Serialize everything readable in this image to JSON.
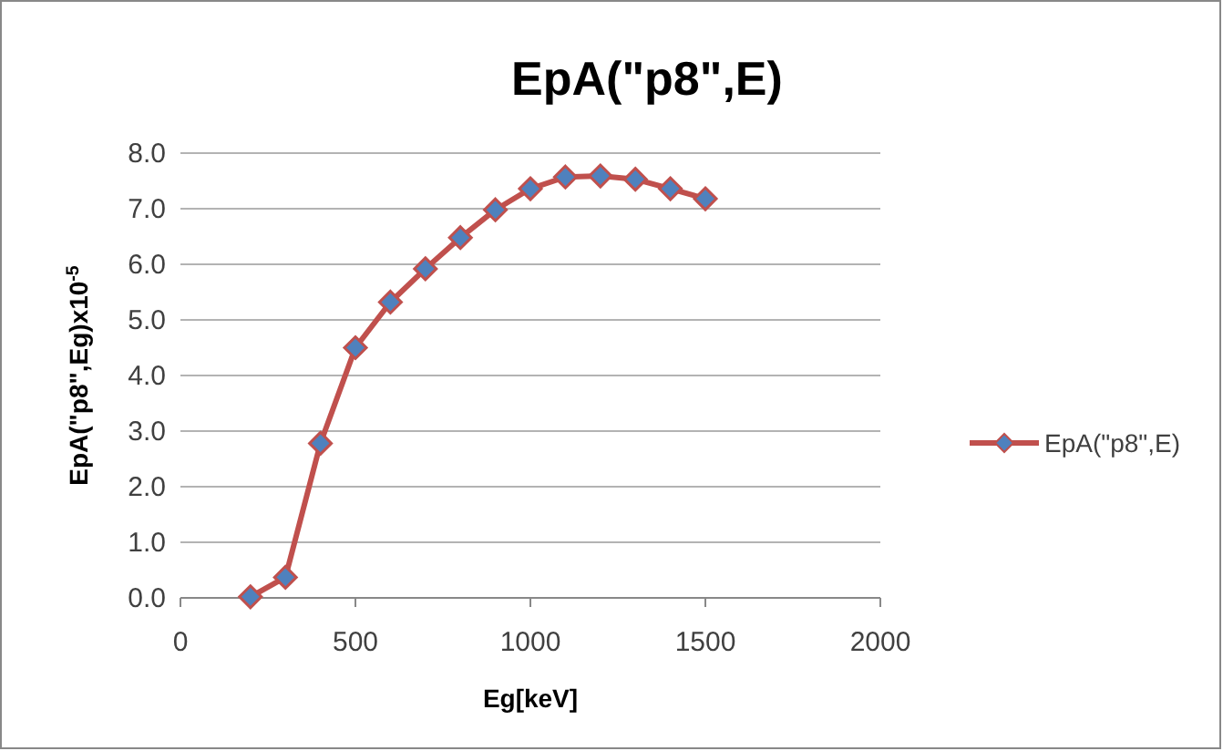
{
  "chart_data": {
    "type": "line",
    "title": "EpA(\"p8\",E)",
    "xlabel": "Eg[keV]",
    "ylabel": "EpA(\"p8\",Eg)x10$^{-5}$",
    "x": [
      200,
      300,
      400,
      500,
      600,
      700,
      800,
      900,
      1000,
      1100,
      1200,
      1300,
      1400,
      1500
    ],
    "series": [
      {
        "name": "EpA(\"p8\",E)",
        "color": "#c0504d",
        "values": [
          0.02,
          0.37,
          2.78,
          4.5,
          5.32,
          5.92,
          6.48,
          6.98,
          7.36,
          7.57,
          7.59,
          7.53,
          7.36,
          7.18
        ]
      }
    ],
    "xlim": [
      0,
      2000
    ],
    "xticks": [
      0,
      500,
      1000,
      1500,
      2000
    ],
    "ylim": [
      0,
      8
    ],
    "yticks": [
      {
        "value": 0,
        "label": "0.0"
      },
      {
        "value": 1,
        "label": "1.0"
      },
      {
        "value": 2,
        "label": "2.0"
      },
      {
        "value": 3,
        "label": "3.0"
      },
      {
        "value": 4,
        "label": "4.0"
      },
      {
        "value": 5,
        "label": "5.0"
      },
      {
        "value": 6,
        "label": "6.0"
      },
      {
        "value": 7,
        "label": "7.0"
      },
      {
        "value": 8,
        "label": "8.0"
      }
    ],
    "grid": "y",
    "legend": "right",
    "marker": "diamond",
    "line_style": "solid"
  }
}
